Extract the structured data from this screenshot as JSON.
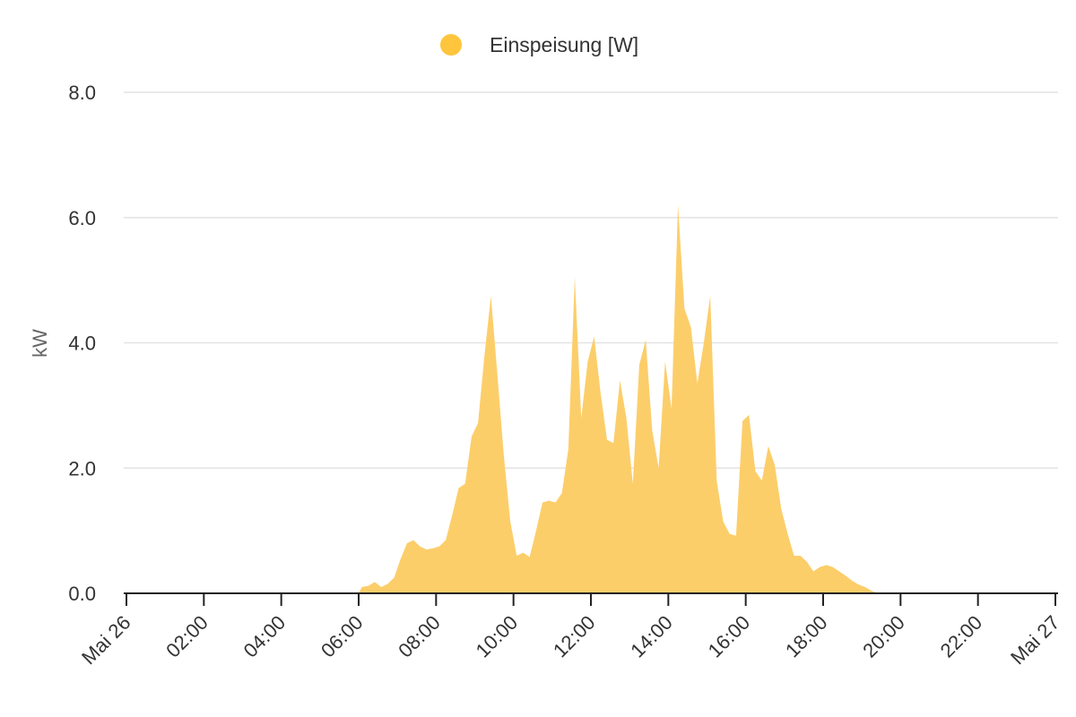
{
  "chart_data": {
    "type": "area",
    "legend": {
      "position": "top-center",
      "label": "Einspeisung [W]",
      "color": "#FFC53D"
    },
    "xlabel": "",
    "ylabel": "kW",
    "ylim": [
      0,
      8
    ],
    "yticks": [
      "0.0",
      "2.0",
      "4.0",
      "6.0",
      "8.0"
    ],
    "xlim": [
      "2023-05-26 00:00",
      "2023-05-27 00:00"
    ],
    "xticks": [
      "Mai 26",
      "02:00",
      "04:00",
      "06:00",
      "08:00",
      "10:00",
      "12:00",
      "14:00",
      "16:00",
      "18:00",
      "20:00",
      "22:00",
      "Mai 27"
    ],
    "grid": true,
    "fill_color": "#FCCE6A",
    "series": [
      {
        "name": "Einspeisung [W]",
        "x": [
          "06:00",
          "06:05",
          "06:15",
          "06:25",
          "06:35",
          "06:45",
          "06:55",
          "07:05",
          "07:15",
          "07:25",
          "07:35",
          "07:45",
          "07:55",
          "08:05",
          "08:15",
          "08:25",
          "08:35",
          "08:45",
          "08:55",
          "09:05",
          "09:15",
          "09:25",
          "09:35",
          "09:45",
          "09:55",
          "10:05",
          "10:15",
          "10:25",
          "10:35",
          "10:45",
          "10:55",
          "11:05",
          "11:15",
          "11:25",
          "11:35",
          "11:45",
          "11:55",
          "12:05",
          "12:15",
          "12:25",
          "12:35",
          "12:45",
          "12:55",
          "13:05",
          "13:15",
          "13:25",
          "13:35",
          "13:45",
          "13:55",
          "14:05",
          "14:15",
          "14:25",
          "14:35",
          "14:45",
          "14:55",
          "15:05",
          "15:15",
          "15:25",
          "15:35",
          "15:45",
          "15:55",
          "16:05",
          "16:15",
          "16:25",
          "16:35",
          "16:45",
          "16:55",
          "17:05",
          "17:15",
          "17:25",
          "17:35",
          "17:45",
          "17:55",
          "18:05",
          "18:15",
          "18:25",
          "18:35",
          "18:45",
          "18:55",
          "19:05",
          "19:15",
          "19:25",
          "19:35",
          "19:45"
        ],
        "values": [
          0.0,
          0.1,
          0.12,
          0.18,
          0.1,
          0.15,
          0.25,
          0.55,
          0.8,
          0.85,
          0.75,
          0.7,
          0.72,
          0.75,
          0.85,
          1.25,
          1.68,
          1.75,
          2.5,
          2.72,
          3.8,
          4.75,
          3.5,
          2.2,
          1.15,
          0.6,
          0.65,
          0.58,
          1.0,
          1.45,
          1.48,
          1.45,
          1.6,
          2.3,
          5.05,
          2.8,
          3.7,
          4.1,
          3.2,
          2.45,
          2.4,
          3.4,
          2.8,
          1.75,
          3.65,
          4.05,
          2.6,
          2.0,
          3.7,
          2.95,
          6.2,
          4.55,
          4.25,
          3.35,
          4.0,
          4.75,
          1.8,
          1.15,
          0.95,
          0.92,
          2.75,
          2.85,
          1.95,
          1.8,
          2.35,
          2.05,
          1.35,
          0.95,
          0.6,
          0.6,
          0.5,
          0.35,
          0.42,
          0.45,
          0.42,
          0.35,
          0.28,
          0.2,
          0.14,
          0.1,
          0.04,
          0.0,
          0.0,
          0.0
        ]
      }
    ]
  }
}
